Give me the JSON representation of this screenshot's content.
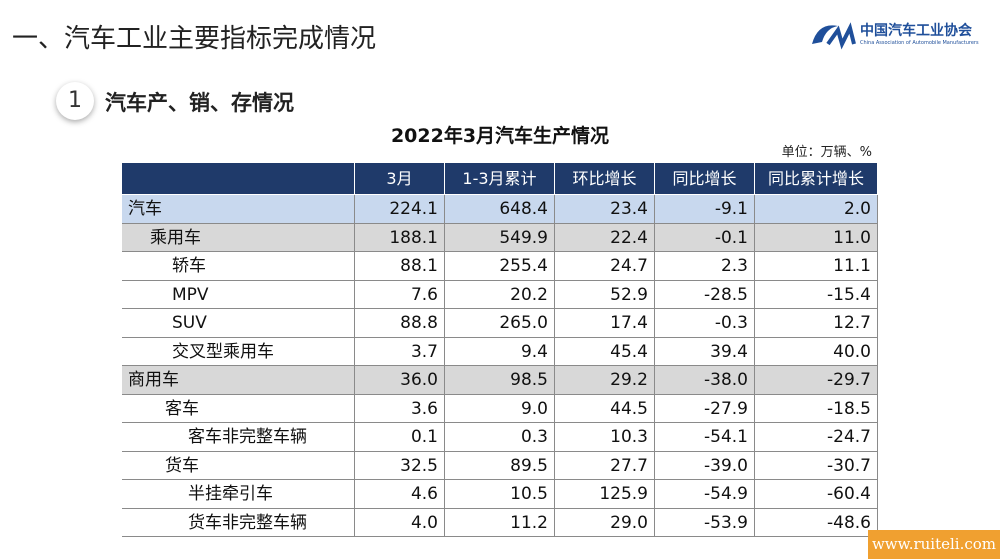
{
  "header": {
    "title": "一、汽车工业主要指标完成情况",
    "logo_name": "中国汽车工业协会",
    "logo_subtitle": "China Association of Automobile Manufacturers"
  },
  "section": {
    "number": "1",
    "title": "汽车产、销、存情况"
  },
  "table": {
    "title": "2022年3月汽车生产情况",
    "unit": "单位：万辆、%",
    "columns": [
      "",
      "3月",
      "1-3月累计",
      "环比增长",
      "同比增长",
      "同比累计增长"
    ],
    "rows": [
      [
        "汽车",
        "224.1",
        "648.4",
        "23.4",
        "-9.1",
        "2.0"
      ],
      [
        "乘用车",
        "188.1",
        "549.9",
        "22.4",
        "-0.1",
        "11.0"
      ],
      [
        "轿车",
        "88.1",
        "255.4",
        "24.7",
        "2.3",
        "11.1"
      ],
      [
        "MPV",
        "7.6",
        "20.2",
        "52.9",
        "-28.5",
        "-15.4"
      ],
      [
        "SUV",
        "88.8",
        "265.0",
        "17.4",
        "-0.3",
        "12.7"
      ],
      [
        "交叉型乘用车",
        "3.7",
        "9.4",
        "45.4",
        "39.4",
        "40.0"
      ],
      [
        "商用车",
        "36.0",
        "98.5",
        "29.2",
        "-38.0",
        "-29.7"
      ],
      [
        "客车",
        "3.6",
        "9.0",
        "44.5",
        "-27.9",
        "-18.5"
      ],
      [
        "客车非完整车辆",
        "0.1",
        "0.3",
        "10.3",
        "-54.1",
        "-24.7"
      ],
      [
        "货车",
        "32.5",
        "89.5",
        "27.7",
        "-39.0",
        "-30.7"
      ],
      [
        "半挂牵引车",
        "4.6",
        "10.5",
        "125.9",
        "-54.9",
        "-60.4"
      ],
      [
        "货车非完整车辆",
        "4.0",
        "11.2",
        "29.0",
        "-53.9",
        "-48.6"
      ]
    ]
  },
  "watermark": "www.ruiteli.com"
}
